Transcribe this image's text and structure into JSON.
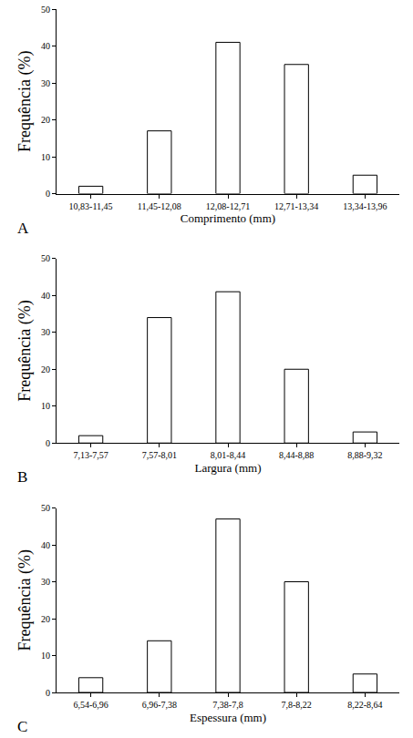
{
  "chart_data": [
    {
      "type": "bar",
      "annotations": [
        "A"
      ],
      "x_label": "Comprimento (mm)",
      "y_label": "Frequência (%)",
      "categories": [
        "10,83-11,45",
        "11,45-12,08",
        "12,08-12,71",
        "12,71-13,34",
        "13,34-13,96"
      ],
      "values": [
        2,
        17,
        41,
        35,
        5
      ],
      "color": "#ffffff",
      "ylim": [
        0,
        50
      ],
      "yticks": [
        0,
        10,
        20,
        30,
        40,
        50
      ],
      "grid": false
    },
    {
      "type": "bar",
      "annotations": [
        "B"
      ],
      "x_label": "Largura (mm)",
      "y_label": "Frequência (%)",
      "categories": [
        "7,13-7,57",
        "7,57-8,01",
        "8,01-8,44",
        "8,44-8,88",
        "8,88-9,32"
      ],
      "values": [
        2,
        34,
        41,
        20,
        3
      ],
      "color": "#ffffff",
      "ylim": [
        0,
        50
      ],
      "yticks": [
        0,
        10,
        20,
        30,
        40,
        50
      ],
      "grid": false
    },
    {
      "type": "bar",
      "annotations": [
        "C"
      ],
      "x_label": "Espessura (mm)",
      "y_label": "Frequência (%)",
      "categories": [
        "6,54-6,96",
        "6,96-7,38",
        "7,38-7,8",
        "7,8-8,22",
        "8,22-8,64"
      ],
      "values": [
        4,
        14,
        47,
        30,
        5
      ],
      "color": "#ffffff",
      "ylim": [
        0,
        50
      ],
      "yticks": [
        0,
        10,
        20,
        30,
        40,
        50
      ],
      "grid": false
    }
  ]
}
